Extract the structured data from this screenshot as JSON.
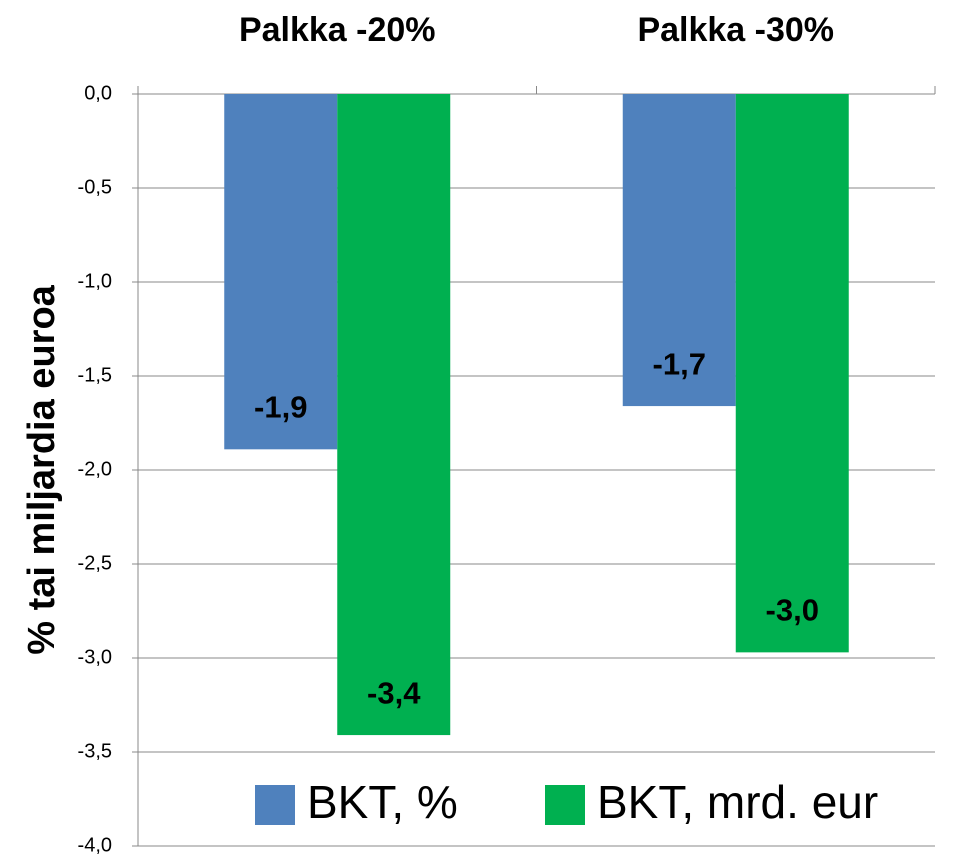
{
  "chart_data": {
    "type": "bar",
    "categories": [
      "Palkka -20%",
      "Palkka -30%"
    ],
    "ylabel": "% tai miljardia euroa",
    "series": [
      {
        "name": "BKT, %",
        "color": "#4f81bd",
        "values": [
          -1.89,
          -1.66
        ],
        "value_labels": [
          "-1,9",
          "-1,7"
        ]
      },
      {
        "name": "BKT, mrd. eur",
        "color": "#00b050",
        "values": [
          -3.41,
          -2.97
        ],
        "value_labels": [
          "-3,4",
          "-3,0"
        ]
      }
    ],
    "ylim": [
      -4.0,
      0.0
    ],
    "yticks": [
      {
        "value": 0,
        "label": "0,0"
      },
      {
        "value": -0.5,
        "label": "-0,5"
      },
      {
        "value": -1.0,
        "label": "-1,0"
      },
      {
        "value": -1.5,
        "label": "-1,5"
      },
      {
        "value": -2.0,
        "label": "-2,0"
      },
      {
        "value": -2.5,
        "label": "-2,5"
      },
      {
        "value": -3.0,
        "label": "-3,0"
      },
      {
        "value": -3.5,
        "label": "-3,5"
      },
      {
        "value": -4.0,
        "label": "-4,0"
      }
    ],
    "grid": true
  }
}
